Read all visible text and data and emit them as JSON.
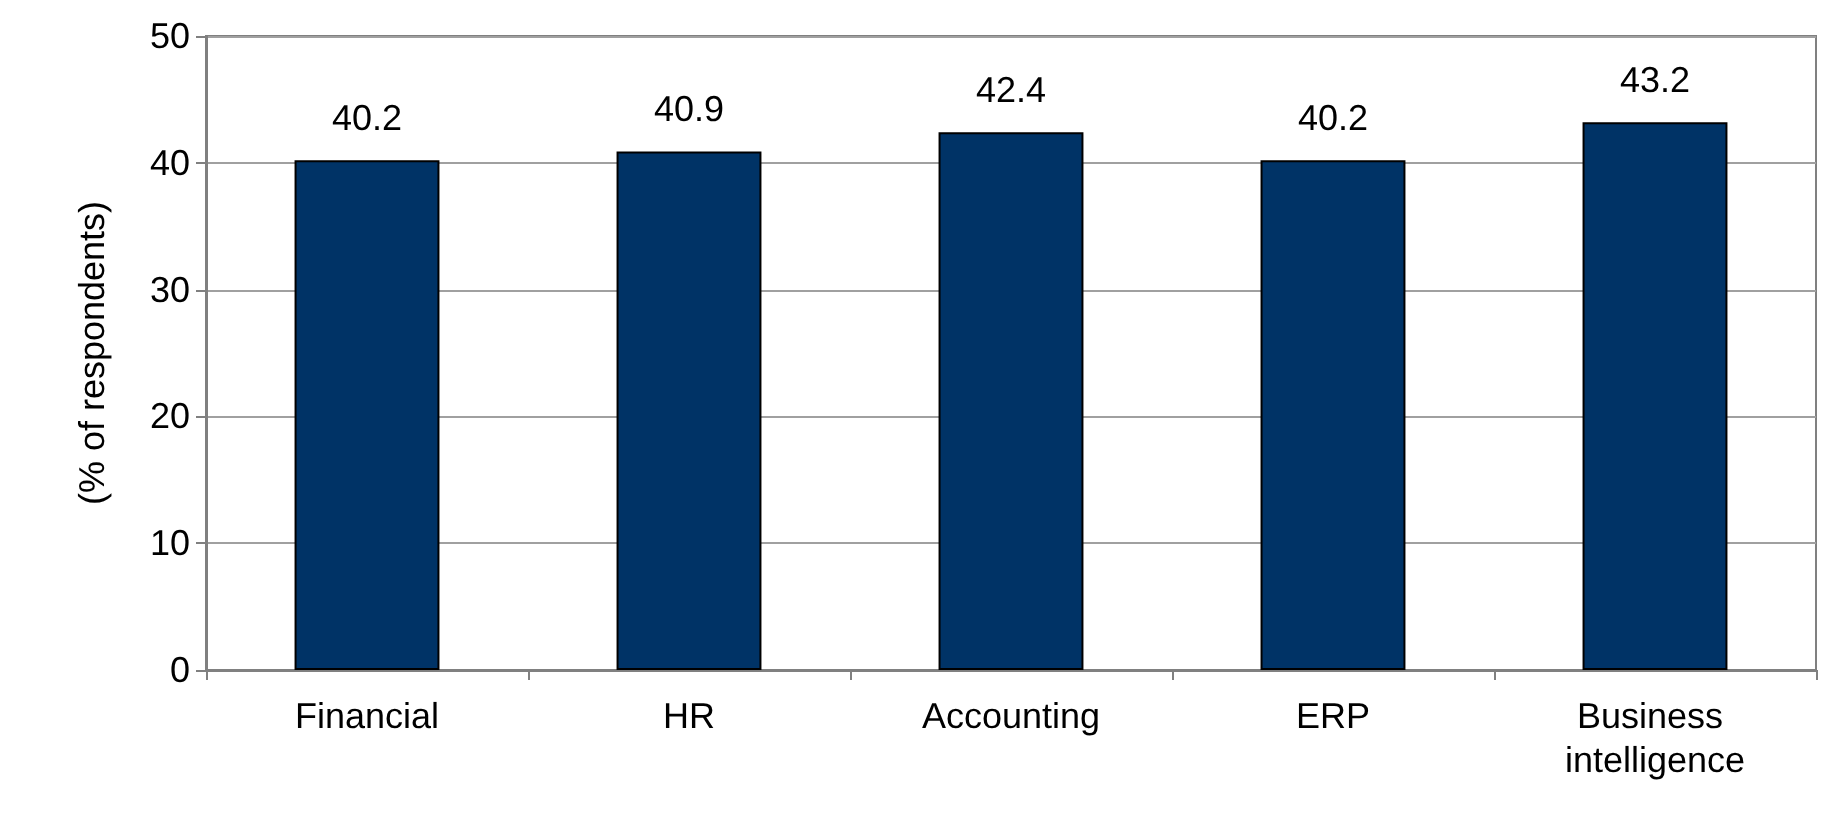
{
  "chart_data": {
    "type": "bar",
    "ylabel": "(% of respondents)",
    "categories": [
      "Financial",
      "HR",
      "Accounting",
      "ERP",
      "Business intelligence"
    ],
    "values": [
      40.2,
      40.9,
      42.4,
      40.2,
      43.2
    ],
    "color": "#003366",
    "ylim": [
      0,
      50
    ],
    "yticks": [
      0,
      10,
      20,
      30,
      40,
      50
    ],
    "grid": "y",
    "data_labels": true
  }
}
